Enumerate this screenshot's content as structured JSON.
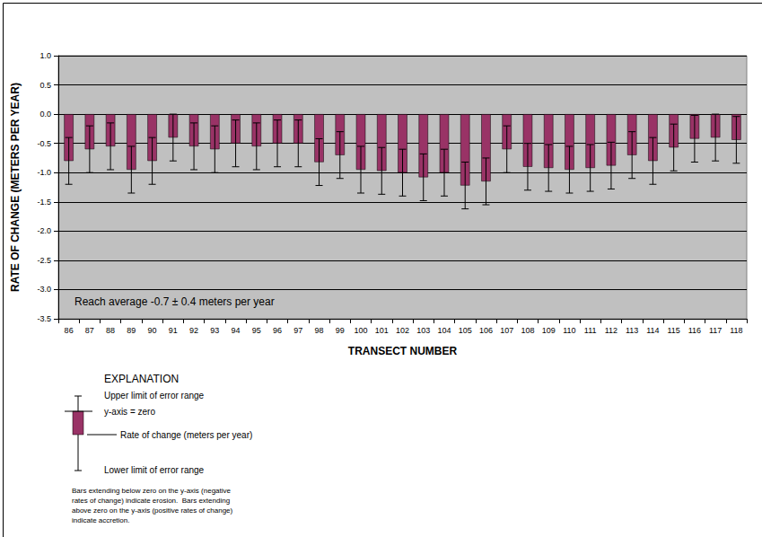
{
  "chart_data": {
    "type": "bar",
    "x_label": "TRANSECT NUMBER",
    "y_label": "RATE OF CHANGE (METERS PER YEAR)",
    "annotations": [
      "Reach average -0.7 ± 0.4 meters per year"
    ],
    "categories": [
      "86",
      "87",
      "88",
      "89",
      "90",
      "91",
      "92",
      "93",
      "94",
      "95",
      "96",
      "97",
      "98",
      "99",
      "100",
      "101",
      "102",
      "103",
      "104",
      "105",
      "106",
      "107",
      "108",
      "109",
      "110",
      "111",
      "112",
      "113",
      "114",
      "115",
      "116",
      "117",
      "118"
    ],
    "values": [
      -0.8,
      -0.6,
      -0.55,
      -0.95,
      -0.8,
      -0.4,
      -0.55,
      -0.6,
      -0.5,
      -0.55,
      -0.5,
      -0.5,
      -0.82,
      -0.7,
      -0.95,
      -0.97,
      -1.0,
      -1.08,
      -1.0,
      -1.22,
      -1.15,
      -0.6,
      -0.9,
      -0.92,
      -0.95,
      -0.92,
      -0.88,
      -0.7,
      -0.8,
      -0.57,
      -0.42,
      -0.4,
      -0.44
    ],
    "errors": [
      0.4,
      0.4,
      0.4,
      0.4,
      0.4,
      0.4,
      0.4,
      0.4,
      0.4,
      0.4,
      0.4,
      0.4,
      0.4,
      0.4,
      0.4,
      0.4,
      0.4,
      0.4,
      0.4,
      0.4,
      0.4,
      0.4,
      0.4,
      0.4,
      0.4,
      0.4,
      0.4,
      0.4,
      0.4,
      0.4,
      0.4,
      0.4,
      0.4
    ],
    "color": "#993366",
    "ylim": [
      -3.5,
      1.0
    ],
    "yticks": [
      {
        "value": -3.5,
        "label": "-3.5"
      },
      {
        "value": -3,
        "label": "-3.0"
      },
      -2.5,
      {
        "value": -2,
        "label": "-2.0"
      },
      -1.5,
      {
        "value": -1,
        "label": "-1.0"
      },
      -0.5,
      {
        "value": 0,
        "label": "0.0"
      },
      0.5,
      {
        "value": 1,
        "label": "1.0"
      }
    ],
    "grid": true,
    "explanation": {
      "title": "EXPLANATION",
      "upper": "Upper limit of error range",
      "zero": "y-axis = zero",
      "rate": "Rate of change (meters per year)",
      "lower": "Lower limit of error range",
      "note": [
        "Bars extending below zero on the y-axis (negative",
        "rates of change) indicate erosion.  Bars extending",
        "above zero on the y-axis (positive rates of change)",
        "indicate accretion."
      ]
    }
  }
}
